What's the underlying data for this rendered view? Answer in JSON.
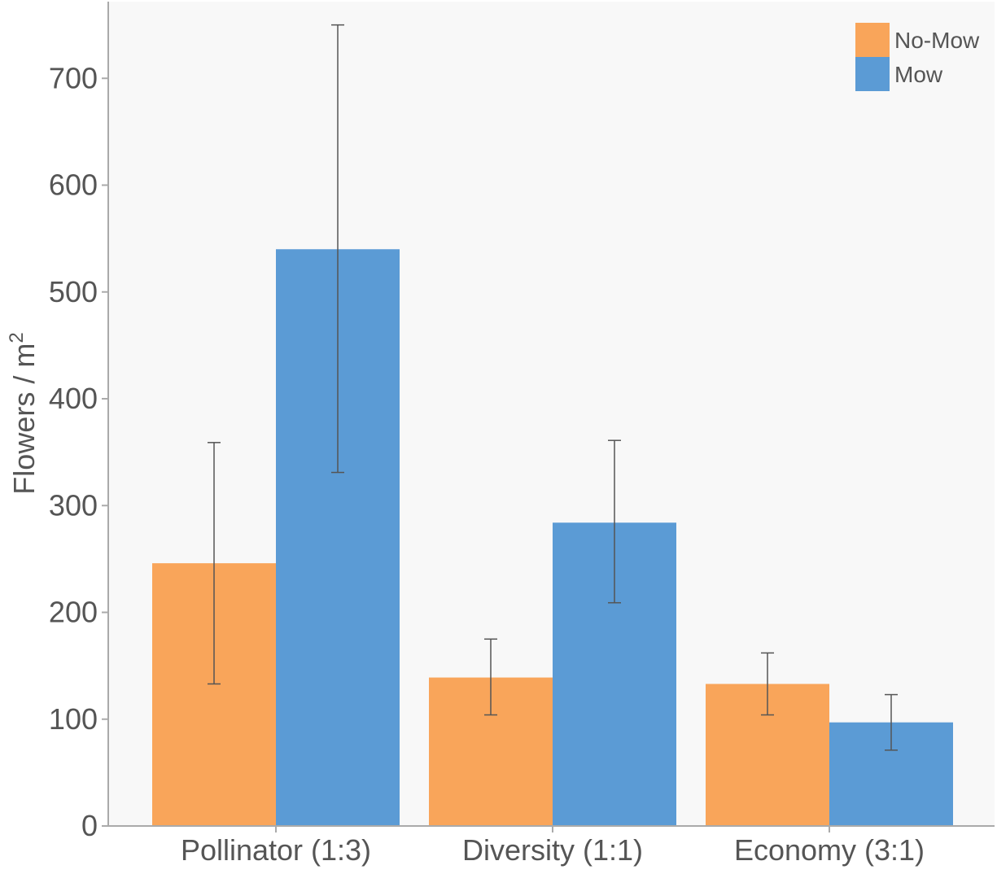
{
  "chart_data": {
    "type": "bar",
    "categories": [
      "Pollinator (1:3)",
      "Diversity (1:1)",
      "Economy (3:1)"
    ],
    "series": [
      {
        "name": "No-Mow",
        "color": "#f9a55a",
        "values": [
          246,
          139,
          133
        ],
        "error_low": [
          133,
          104,
          104
        ],
        "error_high": [
          359,
          175,
          162
        ]
      },
      {
        "name": "Mow",
        "color": "#5b9bd5",
        "values": [
          540,
          284,
          97
        ],
        "error_low": [
          331,
          209,
          71
        ],
        "error_high": [
          750,
          361,
          123
        ]
      }
    ],
    "ylabel": "Flowers / m",
    "ylabel_superscript": "2",
    "yticks": [
      0,
      100,
      200,
      300,
      400,
      500,
      600,
      700
    ],
    "ylim": [
      0,
      770
    ],
    "legend_position": "top-right",
    "grid": false,
    "background": "#f8f8f8",
    "axis_color": "#aaaaaa",
    "errorbar_color": "#555555"
  }
}
